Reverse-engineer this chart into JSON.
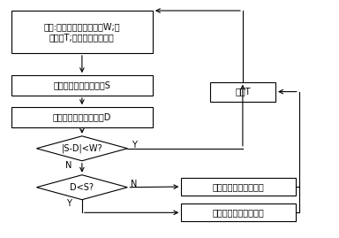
{
  "bg_color": "#ffffff",
  "line_color": "#000000",
  "box_color": "#ffffff",
  "text_color": "#000000",
  "font_size": 7,
  "init_text": "设定:阀门输出误差允许值W;采\n样周期T;阀板转动单位步长",
  "calc_text": "计算控制对象的设定值S",
  "read_text": "读取控制对象的当前量D",
  "cond1_text": "|S-D|<W?",
  "cond2_text": "D<S?",
  "delay_text": "延时T",
  "dec_text": "阀板开度减少一个步长",
  "inc_text": "阀板开度增加一个步长"
}
